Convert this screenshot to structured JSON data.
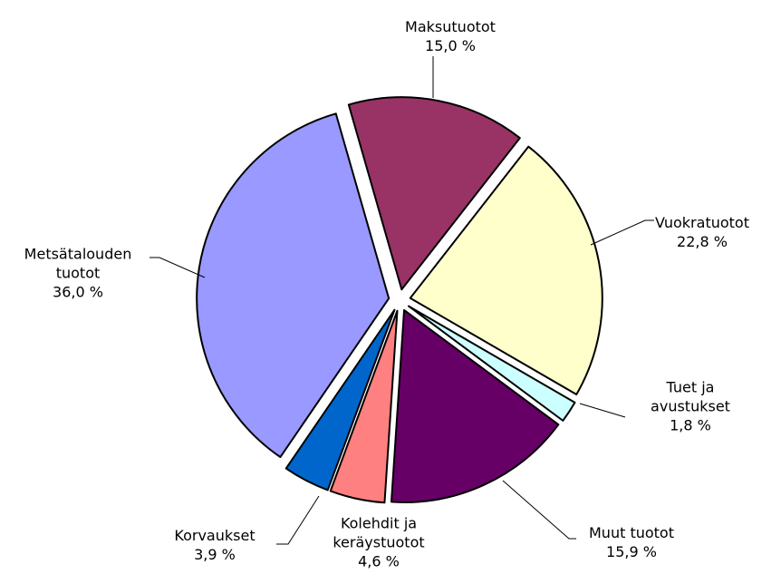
{
  "chart_data": {
    "type": "pie",
    "categories": [
      "Maksutuotot",
      "Vuokratuotot",
      "Tuet ja avustukset",
      "Muut tuotot",
      "Kolehdit ja keräystuotot",
      "Korvaukset",
      "Metsätalouden tuotot"
    ],
    "values": [
      15.0,
      22.8,
      1.8,
      15.9,
      4.6,
      3.9,
      36.0
    ],
    "value_labels": [
      "15,0 %",
      "22,8 %",
      "1,8 %",
      "15,9 %",
      "4,6 %",
      "3,9 %",
      "36,0 %"
    ],
    "colors": [
      "#993366",
      "#ffffcc",
      "#ccffff",
      "#660066",
      "#ff8080",
      "#0066cc",
      "#9999ff"
    ]
  }
}
